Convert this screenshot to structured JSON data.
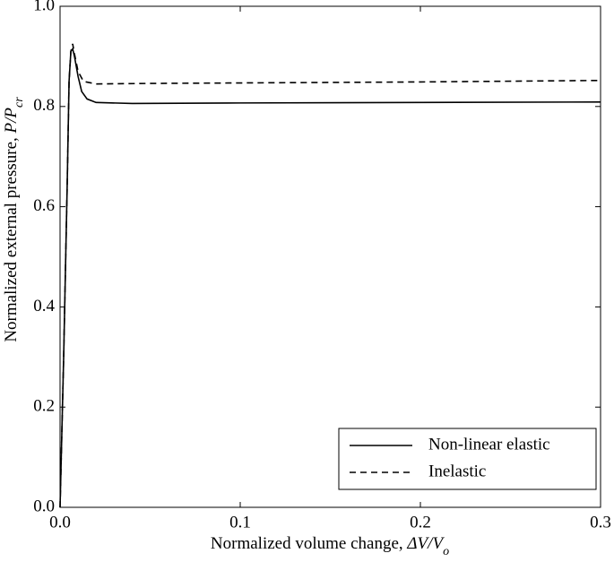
{
  "chart_data": {
    "type": "line",
    "xlabel": [
      "Normalized volume change, ",
      "ΔV/V",
      "o"
    ],
    "ylabel": [
      "Normalized external pressure, ",
      "P/P",
      "cr"
    ],
    "xlim": [
      0,
      0.3
    ],
    "ylim": [
      0,
      1
    ],
    "xticks": [
      {
        "value": 0,
        "label": "0.0"
      },
      0.1,
      0.2,
      0.3
    ],
    "yticks": [
      {
        "value": 0,
        "label": "0.0"
      },
      0.2,
      0.4,
      0.6,
      0.8,
      {
        "value": 1,
        "label": "1.0"
      }
    ],
    "legend": "lower right",
    "series": [
      {
        "name": "Non-linear elastic",
        "color": "#000000",
        "linestyle": "solid",
        "x": [
          0,
          0.002,
          0.004,
          0.005,
          0.006,
          0.007,
          0.008,
          0.01,
          0.012,
          0.015,
          0.02,
          0.04,
          0.1,
          0.2,
          0.3
        ],
        "values": [
          0,
          0.3,
          0.65,
          0.85,
          0.91,
          0.915,
          0.9,
          0.86,
          0.83,
          0.815,
          0.808,
          0.806,
          0.807,
          0.808,
          0.809
        ]
      },
      {
        "name": "Inelastic",
        "color": "#000000",
        "linestyle": "dashed",
        "x": [
          0,
          0.002,
          0.004,
          0.005,
          0.006,
          0.007,
          0.008,
          0.01,
          0.013,
          0.02,
          0.05,
          0.1,
          0.2,
          0.3
        ],
        "values": [
          0,
          0.3,
          0.65,
          0.85,
          0.91,
          0.925,
          0.905,
          0.87,
          0.85,
          0.845,
          0.846,
          0.847,
          0.849,
          0.852
        ]
      }
    ]
  }
}
